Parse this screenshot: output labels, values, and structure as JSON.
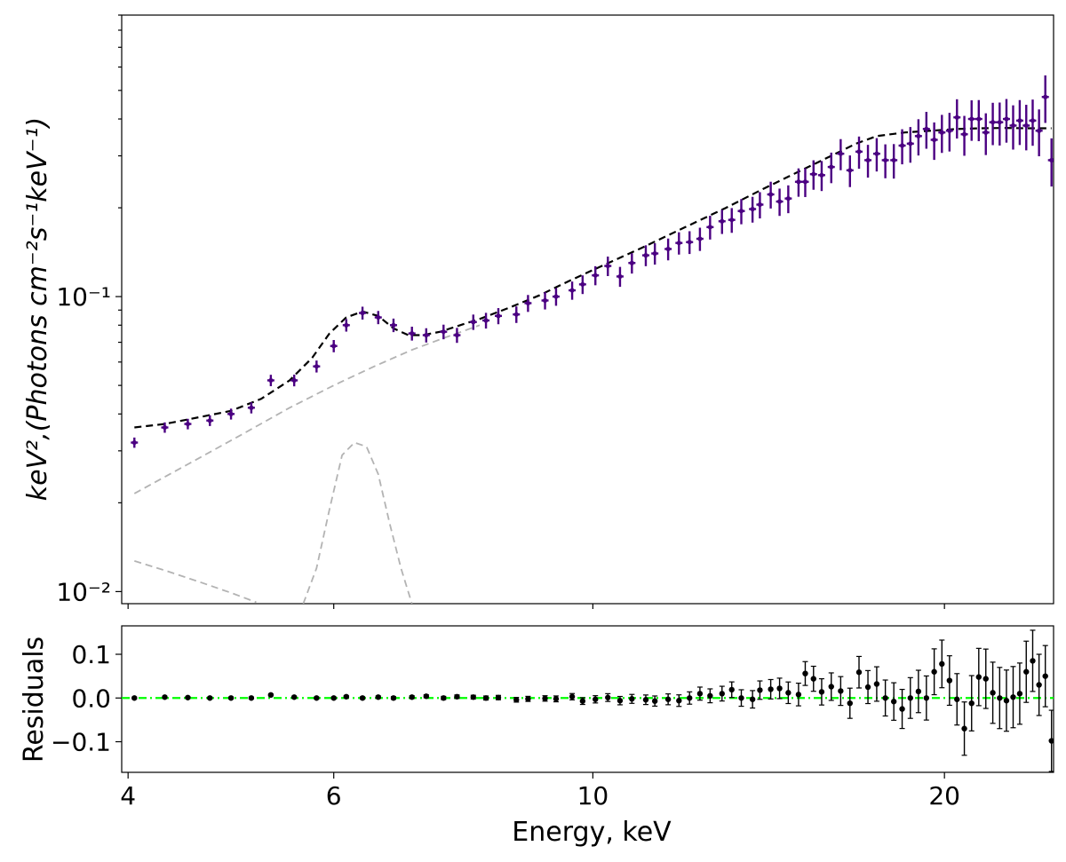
{
  "chart_data": [
    {
      "type": "scatter",
      "panel": "spectrum",
      "title": "",
      "xlabel": "",
      "ylabel": "keV²,(Photons  cm⁻²s⁻¹keV⁻¹)",
      "y_scale": "log",
      "ylim": [
        0.0091,
        0.9
      ],
      "xlim": [
        3.95,
        24.8
      ],
      "y_tick_labels": [
        "10⁻²",
        "10⁻¹"
      ],
      "y_ticks": [
        0.01,
        0.1
      ],
      "grid": false,
      "series": [
        {
          "marker": "errorbar",
          "color": "#4b0082",
          "x": [
            4.05,
            4.3,
            4.5,
            4.7,
            4.9,
            5.1,
            5.3,
            5.55,
            5.8,
            6.0,
            6.15,
            6.35,
            6.55,
            6.75,
            7.0,
            7.2,
            7.45,
            7.65,
            7.9,
            8.1,
            8.3,
            8.6,
            8.8,
            9.1,
            9.3,
            9.6,
            9.8,
            10.05,
            10.3,
            10.55,
            10.8,
            11.1,
            11.3,
            11.6,
            11.85,
            12.1,
            12.35,
            12.6,
            12.9,
            13.15,
            13.4,
            13.7,
            13.9,
            14.2,
            14.45,
            14.7,
            15.0,
            15.2,
            15.45,
            15.7,
            16.0,
            16.3,
            16.6,
            16.9,
            17.2,
            17.5,
            17.8,
            18.1,
            18.4,
            18.7,
            19.0,
            19.3,
            19.6,
            19.9,
            20.2,
            20.5,
            20.8,
            21.1,
            21.4,
            21.7,
            22.0,
            22.3,
            22.6,
            22.9,
            23.2,
            23.5,
            23.8,
            24.1,
            24.4,
            24.7
          ],
          "y": [
            0.032,
            0.036,
            0.037,
            0.038,
            0.04,
            0.042,
            0.052,
            0.052,
            0.058,
            0.068,
            0.08,
            0.088,
            0.085,
            0.08,
            0.075,
            0.074,
            0.076,
            0.074,
            0.082,
            0.083,
            0.086,
            0.087,
            0.095,
            0.097,
            0.1,
            0.105,
            0.11,
            0.118,
            0.127,
            0.117,
            0.13,
            0.138,
            0.14,
            0.145,
            0.152,
            0.153,
            0.157,
            0.172,
            0.18,
            0.182,
            0.195,
            0.198,
            0.205,
            0.222,
            0.21,
            0.215,
            0.245,
            0.245,
            0.26,
            0.258,
            0.275,
            0.305,
            0.268,
            0.31,
            0.29,
            0.305,
            0.29,
            0.29,
            0.325,
            0.33,
            0.35,
            0.37,
            0.34,
            0.36,
            0.365,
            0.405,
            0.355,
            0.4,
            0.4,
            0.36,
            0.39,
            0.39,
            0.4,
            0.38,
            0.395,
            0.38,
            0.395,
            0.365,
            0.475,
            0.29
          ]
        },
        {
          "line": "model",
          "style": "dashed",
          "color": "#000000",
          "x": [
            4.05,
            4.3,
            4.6,
            4.9,
            5.2,
            5.5,
            5.75,
            5.95,
            6.15,
            6.35,
            6.55,
            6.75,
            6.95,
            7.15,
            7.4,
            7.7,
            8.0,
            8.5,
            9.0,
            9.5,
            10.0,
            11.0,
            12.0,
            13.0,
            14.0,
            15.0,
            16.0,
            16.8,
            17.5,
            18.5,
            19.5,
            20.5,
            21.5,
            22.5,
            23.5,
            24.7
          ],
          "y": [
            0.036,
            0.037,
            0.039,
            0.041,
            0.045,
            0.052,
            0.062,
            0.075,
            0.085,
            0.089,
            0.086,
            0.078,
            0.074,
            0.074,
            0.076,
            0.08,
            0.084,
            0.092,
            0.101,
            0.112,
            0.123,
            0.146,
            0.172,
            0.2,
            0.232,
            0.265,
            0.3,
            0.33,
            0.35,
            0.36,
            0.365,
            0.37,
            0.372,
            0.373,
            0.372,
            0.372
          ]
        },
        {
          "line": "continuum component",
          "style": "dashed",
          "color": "#b3b3b3",
          "x": [
            4.05,
            4.5,
            5.0,
            5.5,
            6.0,
            6.5,
            7.0,
            7.5,
            8.0
          ],
          "y": [
            0.0215,
            0.027,
            0.034,
            0.042,
            0.05,
            0.058,
            0.066,
            0.073,
            0.08
          ]
        },
        {
          "line": "line component",
          "style": "dashed",
          "color": "#b3b3b3",
          "x": [
            5.65,
            5.8,
            5.95,
            6.1,
            6.25,
            6.4,
            6.55,
            6.7,
            6.85,
            7.0
          ],
          "y": [
            0.0091,
            0.012,
            0.019,
            0.029,
            0.032,
            0.031,
            0.025,
            0.017,
            0.012,
            0.0091
          ]
        },
        {
          "line": "absorbed component",
          "style": "dashed",
          "color": "#b3b3b3",
          "x": [
            4.05,
            4.3,
            4.6,
            4.9,
            5.15
          ],
          "y": [
            0.0127,
            0.0118,
            0.0108,
            0.0099,
            0.0092
          ]
        }
      ]
    },
    {
      "type": "scatter",
      "panel": "residuals",
      "title": "",
      "xlabel": "Energy, keV",
      "ylabel": "Residuals",
      "ylim": [
        -0.17,
        0.165
      ],
      "xlim": [
        3.95,
        24.8
      ],
      "x_ticks": [
        4,
        6,
        10,
        20
      ],
      "x_tick_labels": [
        "4",
        "6",
        "10",
        "20"
      ],
      "y_ticks": [
        -0.1,
        0.0,
        0.1
      ],
      "y_tick_labels": [
        "−0.1",
        "0.0",
        "0.1"
      ],
      "grid": false,
      "reference_line": {
        "y": 0.0,
        "style": "dash-dot",
        "color": "#00ff00"
      },
      "series": [
        {
          "marker": "errorbar",
          "color": "#000000",
          "x": [
            4.05,
            4.3,
            4.5,
            4.7,
            4.9,
            5.1,
            5.3,
            5.55,
            5.8,
            6.0,
            6.15,
            6.35,
            6.55,
            6.75,
            7.0,
            7.2,
            7.45,
            7.65,
            7.9,
            8.1,
            8.3,
            8.6,
            8.8,
            9.1,
            9.3,
            9.6,
            9.8,
            10.05,
            10.3,
            10.55,
            10.8,
            11.1,
            11.3,
            11.6,
            11.85,
            12.1,
            12.35,
            12.6,
            12.9,
            13.15,
            13.4,
            13.7,
            13.9,
            14.2,
            14.45,
            14.7,
            15.0,
            15.2,
            15.45,
            15.7,
            16.0,
            16.3,
            16.6,
            16.9,
            17.2,
            17.5,
            17.8,
            18.1,
            18.4,
            18.7,
            19.0,
            19.3,
            19.6,
            19.9,
            20.2,
            20.5,
            20.8,
            21.1,
            21.4,
            21.7,
            22.0,
            22.3,
            22.6,
            22.9,
            23.2,
            23.5,
            23.8,
            24.1,
            24.4,
            24.7
          ],
          "y": [
            0.0,
            0.002,
            0.001,
            0.0,
            0.0,
            0.0,
            0.007,
            0.002,
            0.0,
            0.0,
            0.003,
            0.0,
            0.002,
            0.0,
            0.002,
            0.004,
            0.0,
            0.003,
            0.002,
            0.0,
            0.001,
            -0.004,
            -0.002,
            -0.001,
            -0.002,
            0.003,
            -0.007,
            -0.003,
            0.001,
            -0.006,
            -0.002,
            -0.004,
            -0.007,
            -0.003,
            -0.006,
            0.0,
            0.01,
            0.005,
            0.01,
            0.019,
            0.0,
            -0.003,
            0.018,
            0.02,
            0.022,
            0.012,
            0.008,
            0.056,
            0.044,
            0.014,
            0.026,
            0.016,
            -0.012,
            0.059,
            0.025,
            0.032,
            0.0,
            -0.008,
            -0.025,
            0.0,
            0.015,
            0.0,
            0.06,
            0.078,
            0.04,
            -0.003,
            -0.07,
            -0.012,
            0.048,
            0.044,
            0.012,
            0.0,
            -0.006,
            0.002,
            0.01,
            0.06,
            0.085,
            0.03,
            0.05,
            -0.098
          ]
        }
      ]
    }
  ]
}
